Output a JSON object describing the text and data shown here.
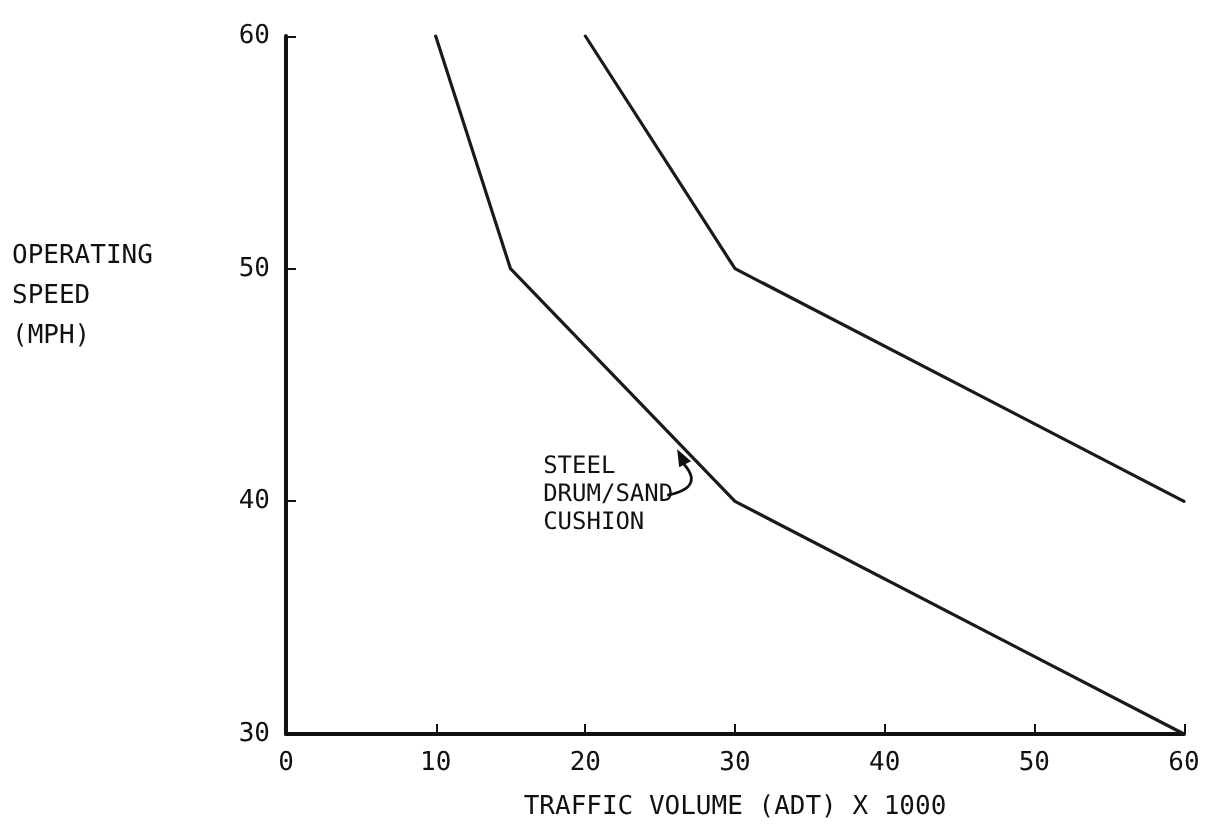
{
  "chart_data": {
    "type": "line",
    "xlabel": "TRAFFIC VOLUME (ADT) X 1000",
    "ylabel": "OPERATING\nSPEED\n(MPH)",
    "series": [
      {
        "color": "#1a1a1a",
        "x": [
          10,
          15,
          30,
          60
        ],
        "values": [
          60,
          50,
          40,
          30
        ]
      },
      {
        "color": "#1a1a1a",
        "x": [
          20,
          30,
          60
        ],
        "values": [
          60,
          50,
          40
        ]
      }
    ],
    "annotations": [
      {
        "text": "STEEL\nDRUM/SAND\nCUSHION",
        "x": 26,
        "y": 42.5
      }
    ],
    "xlim": [
      0,
      60
    ],
    "xticks": [
      0,
      10,
      20,
      30,
      40,
      50,
      60
    ],
    "ylim": [
      30,
      60
    ],
    "yticks": [
      30,
      40,
      50,
      60
    ],
    "grid": false,
    "marker": "none",
    "line_style": "solid"
  }
}
